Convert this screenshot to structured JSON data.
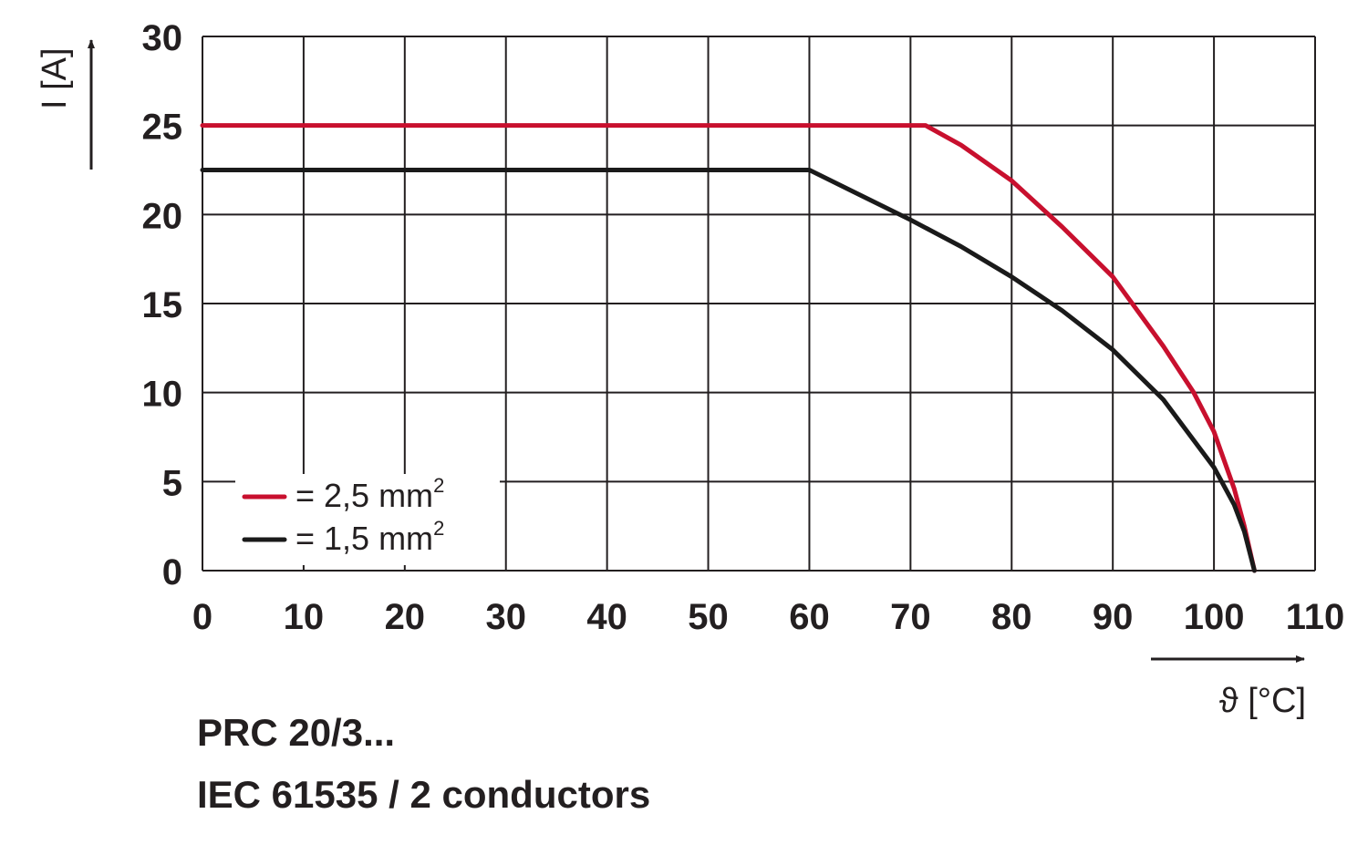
{
  "chart_data": {
    "type": "line",
    "title": "",
    "xlabel": "ϑ [°C]",
    "ylabel": "I [A]",
    "xlim": [
      0,
      110
    ],
    "ylim": [
      0,
      30
    ],
    "x_ticks": [
      0,
      10,
      20,
      30,
      40,
      50,
      60,
      70,
      80,
      90,
      100,
      110
    ],
    "y_ticks": [
      0,
      5,
      10,
      15,
      20,
      25,
      30
    ],
    "x_tick_labels": [
      "0",
      "10",
      "20",
      "30",
      "40",
      "50",
      "60",
      "70",
      "80",
      "90",
      "100",
      "110"
    ],
    "y_tick_labels": [
      "0",
      "5",
      "10",
      "15",
      "20",
      "25",
      "30"
    ],
    "grid": true,
    "legend": {
      "placement": "bottom-left",
      "entries": [
        {
          "label": "= 2,5 mm",
          "superscript": "2",
          "color": "#c8102e"
        },
        {
          "label": "= 1,5 mm",
          "superscript": "2",
          "color": "#1a1a1a"
        }
      ]
    },
    "series": [
      {
        "name": "= 2,5 mm²",
        "color": "#c8102e",
        "points": [
          [
            0,
            25
          ],
          [
            71.5,
            25
          ],
          [
            75,
            23.9
          ],
          [
            80,
            21.9
          ],
          [
            85,
            19.3
          ],
          [
            90,
            16.5
          ],
          [
            95,
            12.6
          ],
          [
            98,
            10.0
          ],
          [
            100,
            7.8
          ],
          [
            102,
            4.6
          ],
          [
            103,
            2.5
          ],
          [
            104,
            0
          ]
        ]
      },
      {
        "name": "= 1,5 mm²",
        "color": "#1a1a1a",
        "points": [
          [
            0,
            22.5
          ],
          [
            60,
            22.5
          ],
          [
            65,
            21.1
          ],
          [
            70,
            19.7
          ],
          [
            75,
            18.2
          ],
          [
            80,
            16.5
          ],
          [
            85,
            14.6
          ],
          [
            90,
            12.4
          ],
          [
            95,
            9.6
          ],
          [
            100,
            5.8
          ],
          [
            102,
            3.7
          ],
          [
            103,
            2.2
          ],
          [
            104,
            0
          ]
        ]
      }
    ]
  },
  "caption": {
    "line1": "PRC 20/3...",
    "line2": "IEC 61535 / 2 conductors"
  }
}
